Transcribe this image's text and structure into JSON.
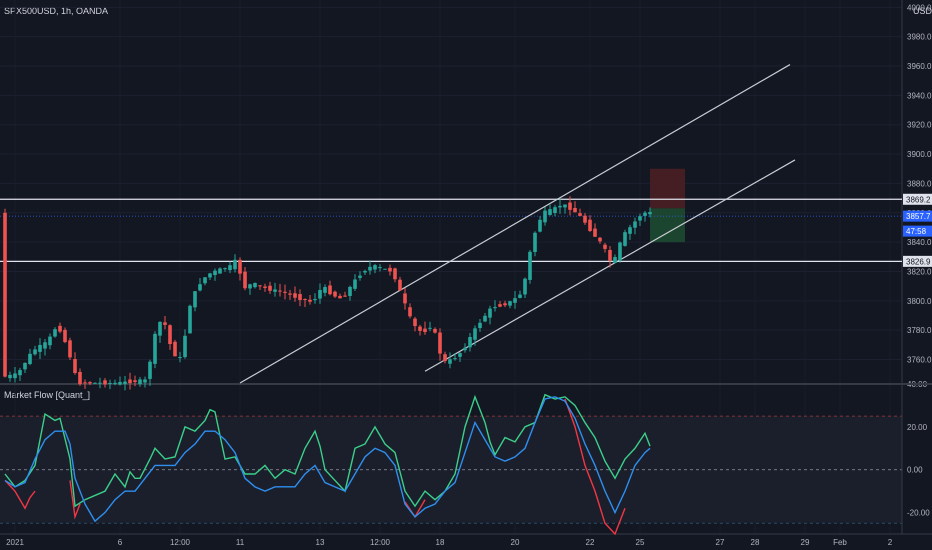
{
  "header": {
    "symbol": "SPX500USD, 1h, OANDA",
    "currency": "USD",
    "indicator": "Market Flow [Quant_]"
  },
  "colors": {
    "background": "#131722",
    "up_candle": "#26a69a",
    "down_candle": "#ef5350",
    "hline": "#e0e3eb",
    "channel": "#c8ccd4",
    "stop_zone": "#4a1f24",
    "target_zone": "#1e4a32",
    "flow_green": "#3bcf8a",
    "flow_red": "#f23645",
    "flow_blue": "#2e8fef",
    "badge_blue": "#2962ff",
    "axis_text": "#b2b5be"
  },
  "chart_data": [
    {
      "type": "candlestick",
      "title": "SPX500USD, 1h, OANDA",
      "ylabel": "USD",
      "ylim": [
        3744,
        4005
      ],
      "yticks": [
        "4000.0",
        "3980.0",
        "3960.0",
        "3940.0",
        "3920.0",
        "3900.0",
        "3880.0",
        "3860.0",
        "3840.0",
        "3820.0",
        "3800.0",
        "3780.0",
        "3760.0"
      ],
      "ytick_values": [
        4000,
        3980,
        3960,
        3940,
        3920,
        3900,
        3880,
        3860,
        3840,
        3820,
        3800,
        3780,
        3760
      ],
      "xticks": [
        "2021",
        "6",
        "12:00",
        "11",
        "13",
        "12:00",
        "18",
        "20",
        "22",
        "25",
        "27",
        "28",
        "29",
        "Feb",
        "2"
      ],
      "xtick_index": [
        2,
        23,
        35,
        47,
        63,
        75,
        87,
        102,
        117,
        127,
        143,
        150,
        160,
        167,
        177
      ],
      "x_range": [
        0,
        187
      ],
      "price_path": [
        [
          0,
          3748
        ],
        [
          3,
          3750
        ],
        [
          6,
          3766
        ],
        [
          9,
          3772
        ],
        [
          11,
          3784
        ],
        [
          13,
          3768
        ],
        [
          15,
          3744
        ],
        [
          23,
          3744
        ],
        [
          29,
          3746
        ],
        [
          30,
          3772
        ],
        [
          32,
          3790
        ],
        [
          34,
          3764
        ],
        [
          36,
          3760
        ],
        [
          37,
          3793
        ],
        [
          39,
          3810
        ],
        [
          41,
          3818
        ],
        [
          44,
          3822
        ],
        [
          46,
          3824
        ],
        [
          47,
          3830
        ],
        [
          48,
          3808
        ],
        [
          50,
          3812
        ],
        [
          53,
          3808
        ],
        [
          56,
          3806
        ],
        [
          59,
          3802
        ],
        [
          62,
          3799
        ],
        [
          64,
          3810
        ],
        [
          66,
          3804
        ],
        [
          68,
          3801
        ],
        [
          70,
          3812
        ],
        [
          72,
          3820
        ],
        [
          74,
          3824
        ],
        [
          76,
          3822
        ],
        [
          78,
          3820
        ],
        [
          80,
          3802
        ],
        [
          82,
          3784
        ],
        [
          84,
          3778
        ],
        [
          86,
          3784
        ],
        [
          88,
          3758
        ],
        [
          90,
          3760
        ],
        [
          92,
          3766
        ],
        [
          94,
          3778
        ],
        [
          96,
          3788
        ],
        [
          98,
          3796
        ],
        [
          100,
          3797
        ],
        [
          102,
          3800
        ],
        [
          104,
          3806
        ],
        [
          106,
          3842
        ],
        [
          108,
          3860
        ],
        [
          110,
          3862
        ],
        [
          112,
          3866
        ],
        [
          114,
          3862
        ],
        [
          116,
          3856
        ],
        [
          118,
          3846
        ],
        [
          120,
          3838
        ],
        [
          122,
          3824
        ],
        [
          124,
          3844
        ],
        [
          126,
          3852
        ],
        [
          128,
          3860
        ],
        [
          129,
          3860
        ]
      ],
      "last_candle_index": 129,
      "price_labels": [
        {
          "text": "3869.2",
          "value": 3869.2,
          "style": "white-line"
        },
        {
          "text": "3826.9",
          "value": 3826.9,
          "style": "white-line"
        },
        {
          "text": "3857.7",
          "value": 3857.7,
          "style": "current"
        },
        {
          "text": "47:58",
          "value": 3847.5,
          "style": "countdown"
        }
      ],
      "horizontal_lines": [
        3869.2,
        3826.9,
        3857.7
      ],
      "channel_lines": [
        {
          "x1": 47,
          "y1": 3744,
          "x2": 157,
          "y2": 3961
        },
        {
          "x1": 84,
          "y1": 3752,
          "x2": 158,
          "y2": 3896
        }
      ],
      "position": {
        "x_start": 129,
        "x_end": 136,
        "entry": 3863,
        "stop": 3890,
        "target": 3840
      }
    },
    {
      "type": "line",
      "title": "Market Flow [Quant_]",
      "ylim": [
        -30,
        40
      ],
      "yticks": [
        "40.00",
        "20.00",
        "0.00",
        "-20.00"
      ],
      "ytick_values": [
        40,
        20,
        0,
        -20
      ],
      "levels": [
        25,
        0,
        -25
      ],
      "band": [
        25,
        -25
      ],
      "series": [
        {
          "name": "",
          "color": "flow_green",
          "points": [
            [
              0,
              -2
            ],
            [
              2,
              -8
            ],
            [
              4,
              -5
            ],
            [
              6,
              2
            ],
            [
              8,
              26
            ],
            [
              10,
              23
            ],
            [
              11,
              24
            ],
            [
              13,
              5
            ],
            [
              14,
              -17
            ],
            [
              16,
              -14
            ],
            [
              18,
              -12
            ],
            [
              20,
              -10
            ],
            [
              22,
              -2
            ],
            [
              24,
              -8
            ],
            [
              25,
              -1
            ],
            [
              26,
              -4
            ],
            [
              27,
              -4
            ],
            [
              29,
              5
            ],
            [
              30,
              10
            ],
            [
              32,
              5
            ],
            [
              34,
              6
            ],
            [
              36,
              20
            ],
            [
              38,
              18
            ],
            [
              40,
              23
            ],
            [
              41,
              28
            ],
            [
              42,
              27
            ],
            [
              44,
              5
            ],
            [
              46,
              6
            ],
            [
              48,
              -2
            ],
            [
              50,
              -2
            ],
            [
              52,
              2
            ],
            [
              54,
              -4
            ],
            [
              56,
              0
            ],
            [
              58,
              -2
            ],
            [
              60,
              10
            ],
            [
              62,
              18
            ],
            [
              63,
              11
            ],
            [
              64,
              0
            ],
            [
              66,
              -5
            ],
            [
              68,
              -10
            ],
            [
              70,
              10
            ],
            [
              72,
              12
            ],
            [
              74,
              20
            ],
            [
              76,
              12
            ],
            [
              78,
              8
            ],
            [
              80,
              -10
            ],
            [
              82,
              -17
            ],
            [
              84,
              -10
            ],
            [
              86,
              -14
            ],
            [
              88,
              -10
            ],
            [
              90,
              -2
            ],
            [
              92,
              20
            ],
            [
              94,
              34
            ],
            [
              96,
              22
            ],
            [
              97,
              13
            ],
            [
              98,
              7
            ],
            [
              100,
              15
            ],
            [
              102,
              13
            ],
            [
              104,
              20
            ],
            [
              106,
              22
            ],
            [
              108,
              35
            ],
            [
              110,
              33
            ],
            [
              112,
              34
            ],
            [
              114,
              30
            ],
            [
              116,
              22
            ],
            [
              118,
              15
            ],
            [
              120,
              4
            ],
            [
              122,
              -4
            ],
            [
              124,
              5
            ],
            [
              126,
              10
            ],
            [
              128,
              17
            ],
            [
              129,
              11
            ]
          ]
        },
        {
          "name": "",
          "color": "flow_red",
          "points": [
            [
              0,
              -5
            ],
            [
              2,
              -10
            ],
            [
              4,
              -18
            ],
            [
              5,
              -13
            ],
            [
              6,
              -10
            ]
          ]
        },
        {
          "name": "",
          "color": "flow_red",
          "points": [
            [
              13,
              -5
            ],
            [
              14,
              -22
            ],
            [
              15,
              -16
            ]
          ]
        },
        {
          "name": "",
          "color": "flow_red",
          "points": [
            [
              80,
              -15
            ],
            [
              82,
              -22
            ],
            [
              84,
              -14
            ]
          ]
        },
        {
          "name": "",
          "color": "flow_red",
          "points": [
            [
              112,
              33
            ],
            [
              114,
              20
            ],
            [
              116,
              2
            ],
            [
              118,
              -10
            ],
            [
              120,
              -25
            ],
            [
              122,
              -30
            ],
            [
              124,
              -18
            ]
          ]
        },
        {
          "name": "",
          "color": "flow_blue",
          "points": [
            [
              0,
              -5
            ],
            [
              2,
              -8
            ],
            [
              4,
              -6
            ],
            [
              6,
              5
            ],
            [
              8,
              14
            ],
            [
              10,
              18
            ],
            [
              12,
              18
            ],
            [
              13,
              12
            ],
            [
              14,
              -4
            ],
            [
              16,
              -16
            ],
            [
              18,
              -24
            ],
            [
              20,
              -20
            ],
            [
              22,
              -14
            ],
            [
              24,
              -10
            ],
            [
              26,
              -10
            ],
            [
              28,
              -4
            ],
            [
              30,
              2
            ],
            [
              32,
              2
            ],
            [
              34,
              2
            ],
            [
              36,
              8
            ],
            [
              38,
              12
            ],
            [
              40,
              18
            ],
            [
              42,
              18
            ],
            [
              44,
              14
            ],
            [
              46,
              8
            ],
            [
              48,
              -4
            ],
            [
              50,
              -8
            ],
            [
              52,
              -10
            ],
            [
              54,
              -8
            ],
            [
              56,
              -8
            ],
            [
              58,
              -8
            ],
            [
              60,
              -2
            ],
            [
              62,
              2
            ],
            [
              64,
              -6
            ],
            [
              66,
              -8
            ],
            [
              68,
              -10
            ],
            [
              70,
              -2
            ],
            [
              72,
              6
            ],
            [
              74,
              10
            ],
            [
              76,
              8
            ],
            [
              78,
              2
            ],
            [
              80,
              -16
            ],
            [
              82,
              -22
            ],
            [
              84,
              -18
            ],
            [
              86,
              -16
            ],
            [
              88,
              -10
            ],
            [
              90,
              -6
            ],
            [
              92,
              8
            ],
            [
              94,
              22
            ],
            [
              96,
              14
            ],
            [
              98,
              6
            ],
            [
              100,
              4
            ],
            [
              102,
              6
            ],
            [
              104,
              10
            ],
            [
              106,
              22
            ],
            [
              108,
              33
            ],
            [
              110,
              34
            ],
            [
              112,
              32
            ],
            [
              114,
              24
            ],
            [
              116,
              12
            ],
            [
              118,
              2
            ],
            [
              120,
              -10
            ],
            [
              122,
              -20
            ],
            [
              124,
              -10
            ],
            [
              126,
              2
            ],
            [
              128,
              8
            ],
            [
              129,
              10
            ]
          ]
        }
      ]
    }
  ]
}
